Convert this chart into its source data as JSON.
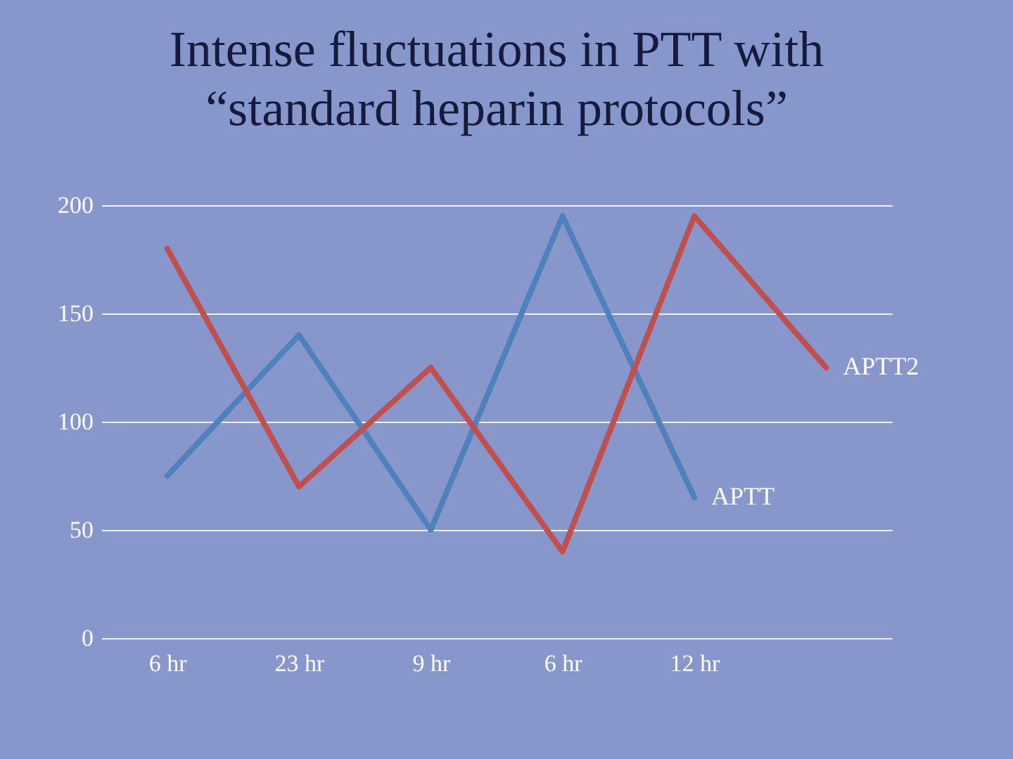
{
  "chart_data": {
    "type": "line",
    "title": "Intense fluctuations in PTT with\n“standard heparin protocols”",
    "categories": [
      "6 hr",
      "23 hr",
      "9 hr",
      "6 hr",
      "12 hr",
      null
    ],
    "series": [
      {
        "name": "APTT",
        "color": "#4f81bd",
        "values": [
          75,
          140,
          50,
          195,
          65,
          null
        ]
      },
      {
        "name": "APTT2",
        "color": "#c0504d",
        "values": [
          180,
          70,
          125,
          40,
          195,
          125
        ]
      }
    ],
    "ylim": [
      0,
      200
    ],
    "yticks": [
      0,
      50,
      100,
      150,
      200
    ],
    "grid": "y"
  }
}
